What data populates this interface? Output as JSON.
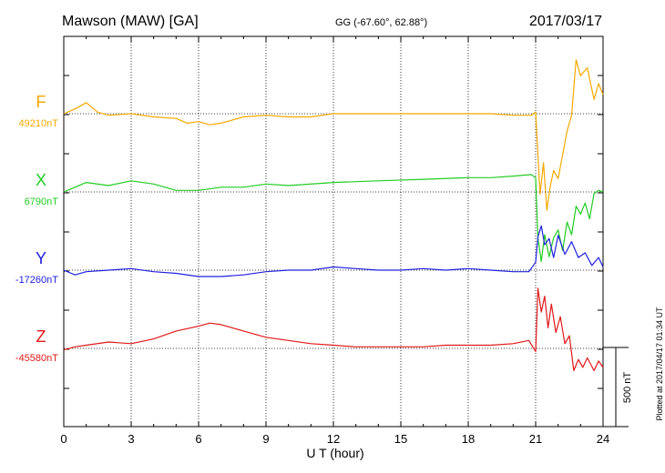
{
  "header": {
    "station": "Mawson (MAW)  [GA]",
    "coords": "GG (-67.60°,  62.88°)",
    "date": "2017/03/17"
  },
  "footer": {
    "plotted_at": "Plotted at 2017/04/17 01:34 UT",
    "scale_label": "500 nT"
  },
  "chart_data": {
    "type": "line",
    "title": "Mawson (MAW)  [GA]",
    "subtitle": "GG (-67.60°,  62.88°)",
    "xlabel": "U T (hour)",
    "ylabel": "",
    "xlim": [
      0,
      24
    ],
    "x_ticks": [
      0,
      3,
      6,
      9,
      12,
      15,
      18,
      21,
      24
    ],
    "grid": true,
    "scale_bar_nT": 500,
    "series": [
      {
        "name": "F",
        "baseline_label": "49210nT",
        "baseline": 49210,
        "color": "#f5a800",
        "x": [
          0,
          0.5,
          1,
          1.5,
          2,
          3,
          4,
          5,
          5.5,
          6,
          6.5,
          7,
          8,
          9,
          10,
          11,
          12,
          13,
          14,
          15,
          16,
          17,
          18,
          19,
          20,
          20.8,
          21,
          21.1,
          21.2,
          21.35,
          21.5,
          21.65,
          21.8,
          22,
          22.2,
          22.4,
          22.6,
          22.8,
          23,
          23.3,
          23.6,
          23.8,
          24
        ],
        "y": [
          49210,
          49240,
          49280,
          49220,
          49200,
          49210,
          49190,
          49180,
          49150,
          49160,
          49140,
          49150,
          49190,
          49200,
          49190,
          49190,
          49210,
          49210,
          49210,
          49210,
          49210,
          49210,
          49210,
          49210,
          49200,
          49200,
          49220,
          48950,
          48700,
          48900,
          48600,
          48750,
          48850,
          48800,
          48950,
          49100,
          49200,
          49550,
          49450,
          49500,
          49300,
          49400,
          49330
        ]
      },
      {
        "name": "X",
        "baseline_label": "6790nT",
        "baseline": 6790,
        "color": "#22cc22",
        "x": [
          0,
          0.5,
          1,
          2,
          3,
          4,
          5,
          6,
          7,
          8,
          9,
          10,
          12,
          14,
          16,
          18,
          19,
          20,
          20.8,
          21,
          21.1,
          21.25,
          21.4,
          21.6,
          21.8,
          22,
          22.2,
          22.4,
          22.6,
          22.8,
          23,
          23.2,
          23.4,
          23.6,
          23.8,
          24
        ],
        "y": [
          6790,
          6820,
          6850,
          6830,
          6860,
          6840,
          6800,
          6800,
          6820,
          6820,
          6840,
          6830,
          6850,
          6860,
          6870,
          6880,
          6880,
          6890,
          6900,
          6880,
          6500,
          6350,
          6520,
          6380,
          6500,
          6550,
          6420,
          6600,
          6520,
          6700,
          6650,
          6720,
          6620,
          6780,
          6800,
          6790
        ]
      },
      {
        "name": "Y",
        "baseline_label": "-17260nT",
        "baseline": -17260,
        "color": "#2020e0",
        "x": [
          0,
          0.5,
          1,
          2,
          3,
          4,
          5,
          6,
          7,
          8,
          9,
          10,
          11,
          12,
          13,
          14,
          15,
          16,
          17,
          18,
          19,
          20,
          20.7,
          21,
          21.1,
          21.25,
          21.4,
          21.6,
          21.8,
          22,
          22.3,
          22.6,
          22.9,
          23.2,
          23.5,
          23.8,
          24
        ],
        "y": [
          -17260,
          -17290,
          -17270,
          -17260,
          -17250,
          -17270,
          -17280,
          -17300,
          -17300,
          -17290,
          -17270,
          -17260,
          -17260,
          -17240,
          -17250,
          -17260,
          -17260,
          -17250,
          -17260,
          -17250,
          -17260,
          -17270,
          -17270,
          -17210,
          -17050,
          -16980,
          -17100,
          -17060,
          -17180,
          -17040,
          -17160,
          -17080,
          -17180,
          -17150,
          -17230,
          -17180,
          -17240
        ]
      },
      {
        "name": "Z",
        "baseline_label": "-45580nT",
        "baseline": -45580,
        "color": "#e01818",
        "x": [
          0,
          0.5,
          1,
          2,
          3,
          4,
          5,
          6,
          6.5,
          7,
          8,
          9,
          10,
          11,
          12,
          13,
          14,
          15,
          16,
          17,
          18,
          19,
          20,
          20.7,
          21,
          21.1,
          21.25,
          21.4,
          21.55,
          21.7,
          21.9,
          22.1,
          22.3,
          22.5,
          22.7,
          22.9,
          23.1,
          23.3,
          23.6,
          23.8,
          24
        ],
        "y": [
          -45590,
          -45570,
          -45560,
          -45540,
          -45550,
          -45520,
          -45470,
          -45440,
          -45420,
          -45430,
          -45470,
          -45510,
          -45530,
          -45550,
          -45560,
          -45570,
          -45570,
          -45570,
          -45570,
          -45560,
          -45560,
          -45560,
          -45550,
          -45530,
          -45600,
          -45200,
          -45350,
          -45250,
          -45450,
          -45300,
          -45480,
          -45380,
          -45550,
          -45500,
          -45720,
          -45650,
          -45700,
          -45640,
          -45720,
          -45660,
          -45700
        ]
      }
    ]
  }
}
